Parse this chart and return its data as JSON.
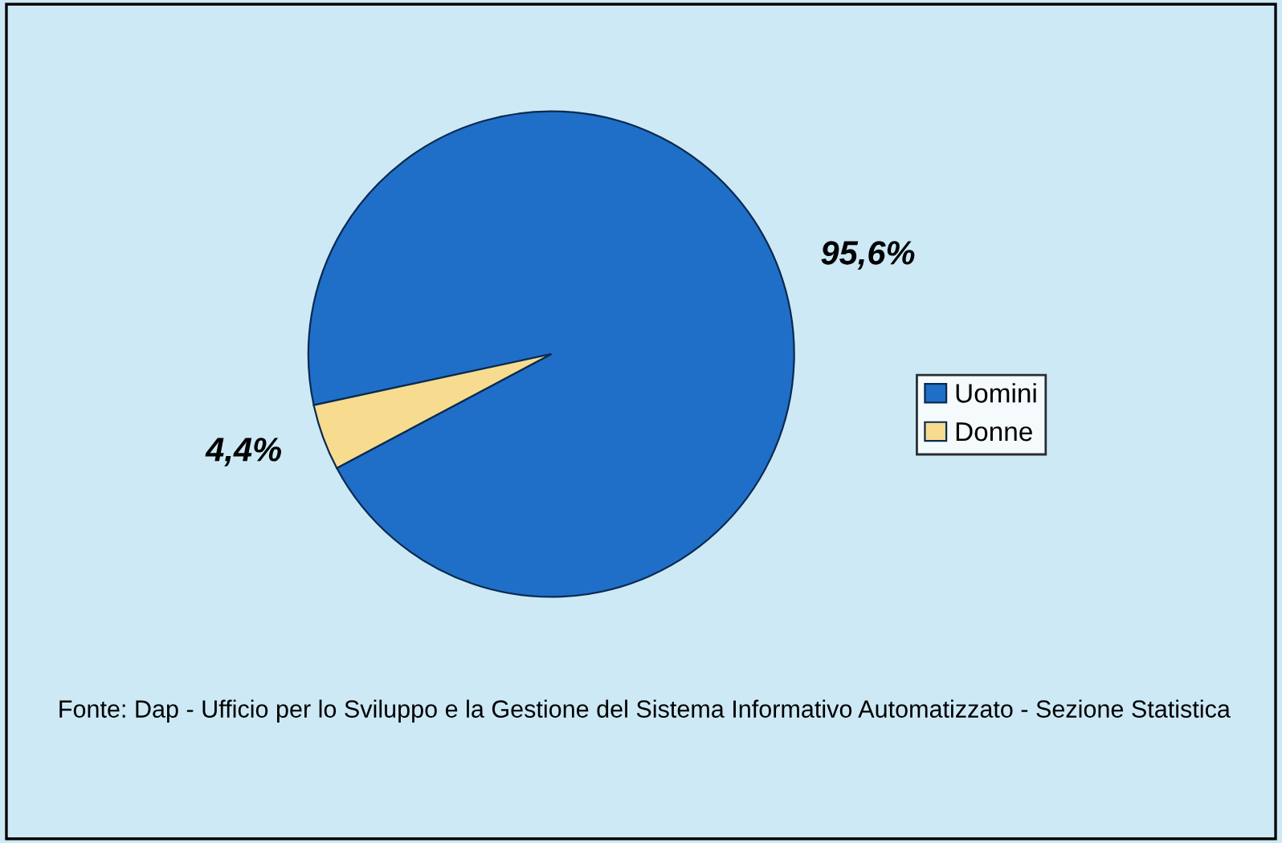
{
  "chart_data": {
    "type": "pie",
    "categories": [
      "Uomini",
      "Donne"
    ],
    "values": [
      95.6,
      4.4
    ],
    "colors": [
      "#1f6fc8",
      "#f7dc90"
    ],
    "value_labels": [
      "95,6%",
      "4,4%"
    ],
    "legend": "right",
    "annotations": [
      "Fonte: Dap - Ufficio per lo Sviluppo e la Gestione del Sistema Informativo Automatizzato - Sezione Statistica"
    ]
  }
}
